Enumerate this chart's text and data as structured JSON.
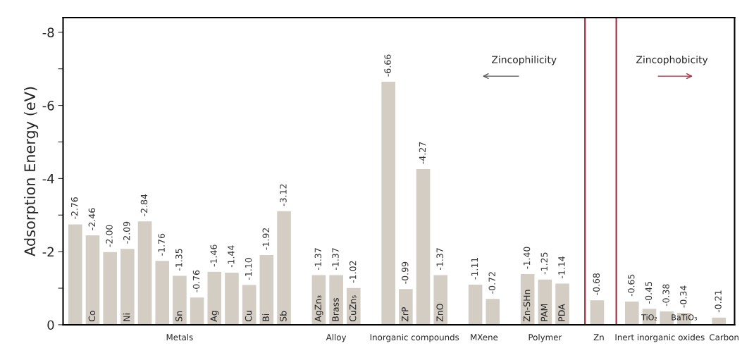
{
  "chart_data": {
    "type": "bar",
    "ylabel": "Adsorption Energy (eV)",
    "categories": [
      null,
      "Co",
      null,
      "Ni",
      null,
      null,
      "Sn",
      null,
      "Ag",
      null,
      "Cu",
      "Bi",
      "Sb",
      null,
      "AgZn₃",
      "Brass",
      "CuZn₅",
      null,
      null,
      "ZrP",
      null,
      "ZnO",
      null,
      null,
      null,
      null,
      "Zn-SHn",
      "PAM",
      "PDA",
      null,
      null,
      null,
      null,
      "TiO₂",
      null,
      "BaTiO₃",
      null,
      null
    ],
    "values": [
      -2.76,
      -2.46,
      -2.0,
      -2.09,
      -2.84,
      -1.76,
      -1.35,
      -0.76,
      -1.46,
      -1.44,
      -1.1,
      -1.92,
      -3.12,
      null,
      -1.37,
      -1.37,
      -1.02,
      null,
      -6.66,
      -0.99,
      -4.27,
      -1.37,
      null,
      -1.11,
      -0.72,
      null,
      -1.4,
      -1.25,
      -1.14,
      null,
      -0.68,
      null,
      -0.65,
      -0.45,
      -0.38,
      -0.34,
      null,
      -0.21
    ],
    "color": "#d3cdc4",
    "value_labels": [
      "-2.76",
      "-2.46",
      "-2.00",
      "-2.09",
      "-2.84",
      "-1.76",
      "-1.35",
      "-0.76",
      "-1.46",
      "-1.44",
      "-1.10",
      "-1.92",
      "-3.12",
      null,
      "-1.37",
      "-1.37",
      "-1.02",
      null,
      "-6.66",
      "-0.99",
      "-4.27",
      "-1.37",
      null,
      "-1.11",
      "-0.72",
      null,
      "-1.40",
      "-1.25",
      "-1.14",
      null,
      "-0.68",
      null,
      "-0.65",
      "-0.45",
      "-0.38",
      "-0.34",
      null,
      "-0.21"
    ],
    "ylim": [
      0,
      -8.4
    ],
    "yticks": [
      0,
      {
        "value": -1,
        "label": null
      },
      -2,
      {
        "value": -3,
        "label": null
      },
      -4,
      {
        "value": -5,
        "label": null
      },
      -6,
      {
        "value": -7,
        "label": null
      },
      -8
    ],
    "annotations": [
      "Metals",
      "Alloy",
      "Inorganic compounds",
      "MXene",
      "Polymer",
      "Zn",
      "Inert inorganic oxides",
      "Carbon",
      "Zincophilicity",
      "Zincophobicity"
    ]
  }
}
